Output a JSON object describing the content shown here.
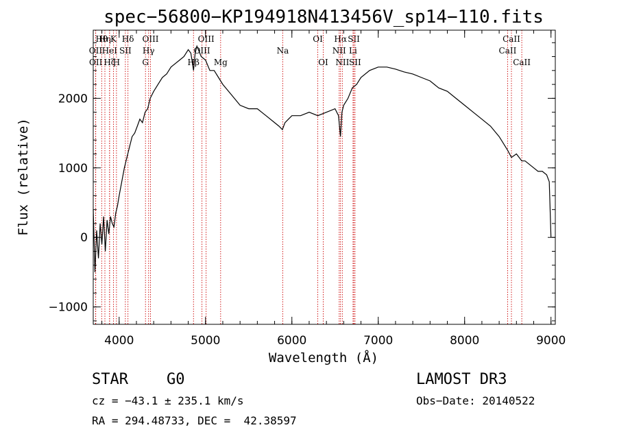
{
  "chart_data": {
    "type": "line",
    "title": "spec−56800−KP194918N413456V_sp14−110.fits",
    "xlabel": "Wavelength (Å)",
    "ylabel": "Flux (relative)",
    "xlim": [
      3700,
      9050
    ],
    "ylim": [
      -1250,
      2980
    ],
    "xticks": [
      4000,
      5000,
      6000,
      7000,
      8000,
      9000
    ],
    "yticks": [
      -1000,
      0,
      1000,
      2000
    ],
    "ytick_labels": [
      "−1000",
      "0",
      "1000",
      "2000"
    ],
    "series": [
      {
        "name": "spectrum",
        "x": [
          3700,
          3720,
          3740,
          3760,
          3780,
          3800,
          3820,
          3840,
          3860,
          3880,
          3900,
          3920,
          3940,
          3960,
          3980,
          4000,
          4030,
          4060,
          4090,
          4120,
          4150,
          4180,
          4210,
          4240,
          4270,
          4300,
          4330,
          4360,
          4400,
          4450,
          4500,
          4550,
          4600,
          4650,
          4700,
          4750,
          4800,
          4830,
          4861,
          4880,
          4900,
          4950,
          5000,
          5050,
          5100,
          5150,
          5200,
          5300,
          5400,
          5500,
          5600,
          5700,
          5800,
          5850,
          5890,
          5920,
          5960,
          6000,
          6100,
          6200,
          6300,
          6400,
          6500,
          6540,
          6562,
          6580,
          6600,
          6650,
          6700,
          6750,
          6800,
          6900,
          7000,
          7050,
          7100,
          7200,
          7300,
          7400,
          7500,
          7600,
          7700,
          7800,
          7900,
          8000,
          8100,
          8200,
          8300,
          8400,
          8450,
          8500,
          8542,
          8600,
          8662,
          8700,
          8800,
          8850,
          8900,
          8950,
          8980,
          9000
        ],
        "y": [
          400,
          -500,
          100,
          -300,
          200,
          -100,
          300,
          -200,
          250,
          50,
          300,
          200,
          150,
          350,
          450,
          600,
          800,
          1000,
          1150,
          1300,
          1450,
          1500,
          1600,
          1700,
          1650,
          1800,
          1850,
          2000,
          2100,
          2200,
          2300,
          2350,
          2450,
          2500,
          2550,
          2600,
          2700,
          2650,
          2400,
          2650,
          2750,
          2600,
          2550,
          2400,
          2400,
          2300,
          2200,
          2050,
          1900,
          1850,
          1850,
          1750,
          1650,
          1600,
          1550,
          1650,
          1700,
          1750,
          1750,
          1800,
          1750,
          1800,
          1850,
          1750,
          1450,
          1800,
          1900,
          2000,
          2150,
          2200,
          2300,
          2400,
          2450,
          2450,
          2450,
          2420,
          2380,
          2350,
          2300,
          2250,
          2150,
          2100,
          2000,
          1900,
          1800,
          1700,
          1600,
          1450,
          1350,
          1250,
          1150,
          1200,
          1100,
          1100,
          1000,
          950,
          950,
          900,
          800,
          0
        ]
      }
    ],
    "line_markers": [
      {
        "label": "Hθ",
        "wavelength": 3798,
        "row": 0
      },
      {
        "label": "OII",
        "wavelength": 3727,
        "row": 1
      },
      {
        "label": "OII",
        "wavelength": 3729,
        "row": 2
      },
      {
        "label": "Hη",
        "wavelength": 3835,
        "row": 0
      },
      {
        "label": "HeI",
        "wavelength": 3889,
        "row": 1
      },
      {
        "label": "Hζ",
        "wavelength": 3889,
        "row": 2
      },
      {
        "label": "K",
        "wavelength": 3934,
        "row": 0
      },
      {
        "label": "H",
        "wavelength": 3969,
        "row": 2
      },
      {
        "label": "Hδ",
        "wavelength": 4102,
        "row": 0
      },
      {
        "label": "SII",
        "wavelength": 4072,
        "row": 1
      },
      {
        "label": "OIII",
        "wavelength": 4363,
        "row": 0
      },
      {
        "label": "Hγ",
        "wavelength": 4341,
        "row": 1
      },
      {
        "label": "G",
        "wavelength": 4305,
        "row": 2
      },
      {
        "label": "Hβ",
        "wavelength": 4861,
        "row": 2
      },
      {
        "label": "OIII",
        "wavelength": 5007,
        "row": 0
      },
      {
        "label": "OIII",
        "wavelength": 4959,
        "row": 1
      },
      {
        "label": "Mg",
        "wavelength": 5175,
        "row": 2
      },
      {
        "label": "Na",
        "wavelength": 5894,
        "row": 1
      },
      {
        "label": "OI",
        "wavelength": 6300,
        "row": 0
      },
      {
        "label": "OI",
        "wavelength": 6363,
        "row": 2
      },
      {
        "label": "Hα",
        "wavelength": 6563,
        "row": 0
      },
      {
        "label": "NII",
        "wavelength": 6548,
        "row": 1
      },
      {
        "label": "NII",
        "wavelength": 6584,
        "row": 2
      },
      {
        "label": "SII",
        "wavelength": 6717,
        "row": 0
      },
      {
        "label": "Li",
        "wavelength": 6708,
        "row": 1
      },
      {
        "label": "SII",
        "wavelength": 6731,
        "row": 2
      },
      {
        "label": "CaII",
        "wavelength": 8542,
        "row": 0
      },
      {
        "label": "CaII",
        "wavelength": 8498,
        "row": 1
      },
      {
        "label": "CaII",
        "wavelength": 8662,
        "row": 2
      }
    ]
  },
  "info": {
    "object_class": "STAR",
    "subclass": "G0",
    "survey": "LAMOST DR3",
    "cz": "cz = −43.1 ± 235.1 km/s",
    "obs_date": "Obs−Date: 20140522",
    "coords": "RA = 294.48733, DEC =  42.38597"
  },
  "colors": {
    "spectrum": "#000000",
    "marker_line": "#cc0000",
    "axis": "#000000"
  }
}
